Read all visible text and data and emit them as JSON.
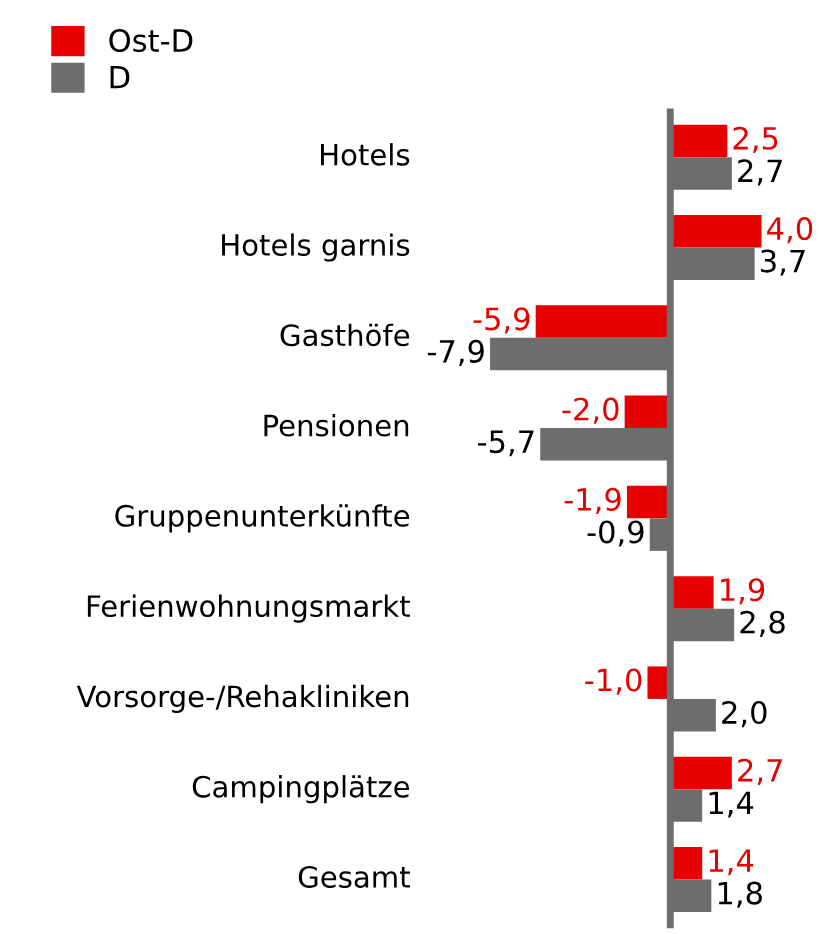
{
  "chart_data": {
    "type": "bar",
    "orientation": "horizontal",
    "legend": "top left",
    "categories": [
      "Hotels",
      "Hotels garnis",
      "Gasthöfe",
      "Pensionen",
      "Gruppenunterkünfte",
      "Ferienwohnungsmarkt",
      "Vorsorge-/Rehakliniken",
      "Campingplätze",
      "Gesamt"
    ],
    "series": [
      {
        "name": "Ost-D",
        "color": "#e60000",
        "values": [
          2.5,
          4.0,
          -5.9,
          -2.0,
          -1.9,
          1.9,
          -1.0,
          2.7,
          1.4
        ],
        "value_labels": [
          "2,5",
          "4,0",
          "-5,9",
          "-2,0",
          "-1,9",
          "1,9",
          "-1,0",
          "2,7",
          "1,4"
        ]
      },
      {
        "name": "D",
        "color": "#6d6d6d",
        "values": [
          2.7,
          3.7,
          -7.9,
          -5.7,
          -0.9,
          2.8,
          2.0,
          1.4,
          1.8
        ],
        "value_labels": [
          "2,7",
          "3,7",
          "-7,9",
          "-5,7",
          "-0,9",
          "2,8",
          "2,0",
          "1,4",
          "1,8"
        ]
      }
    ]
  }
}
